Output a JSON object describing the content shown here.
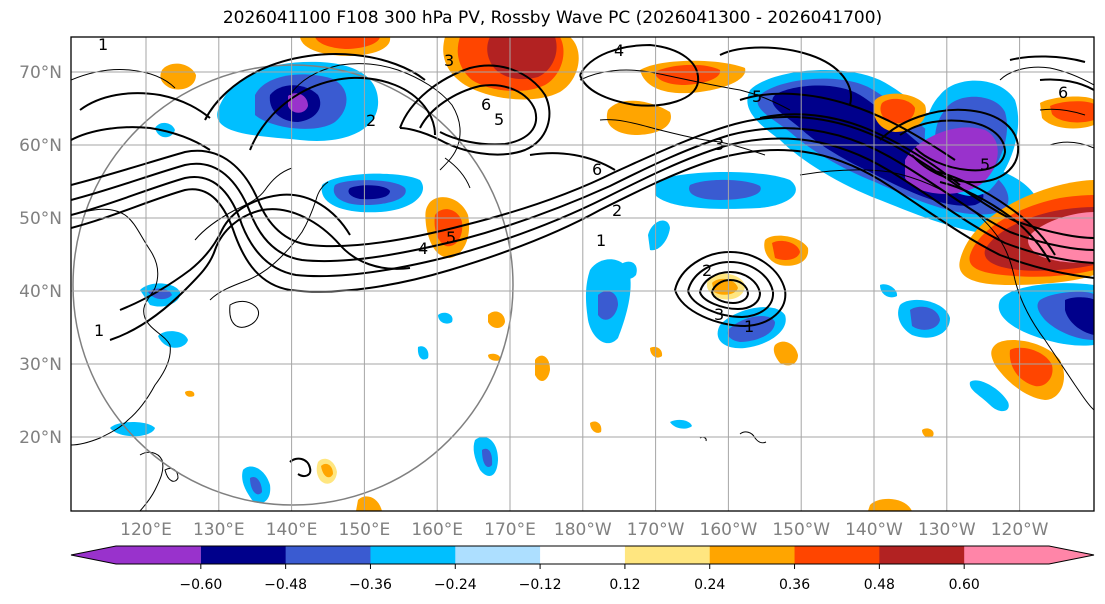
{
  "title": "2026041100 F108 300 hPa PV, Rossby Wave PC (2026041300 - 2026041700)",
  "latitude_labels": [
    "70°N",
    "60°N",
    "50°N",
    "40°N",
    "30°N",
    "20°N"
  ],
  "longitude_labels": [
    "120°E",
    "130°E",
    "140°E",
    "150°E",
    "160°E",
    "170°E",
    "180°W",
    "170°W",
    "160°W",
    "150°W",
    "140°W",
    "130°W",
    "120°W"
  ],
  "colorbar": {
    "tick_labels": [
      "−0.60",
      "−0.48",
      "−0.36",
      "−0.24",
      "−0.12",
      "0.12",
      "0.24",
      "0.36",
      "0.48",
      "0.60"
    ],
    "colors": [
      "#9932CC",
      "#00008B",
      "#3A5BD1",
      "#00BFFF",
      "#ADDFFF",
      "#FFFFFF",
      "#FFE680",
      "#FFA500",
      "#FF4500",
      "#B22222",
      "#FF85A8"
    ]
  },
  "contour_labels": [
    "1",
    "3",
    "4",
    "2",
    "5",
    "6",
    "5",
    "3",
    "6",
    "2",
    "1",
    "5",
    "4",
    "2",
    "3",
    "1",
    "5",
    "1",
    "6"
  ]
}
